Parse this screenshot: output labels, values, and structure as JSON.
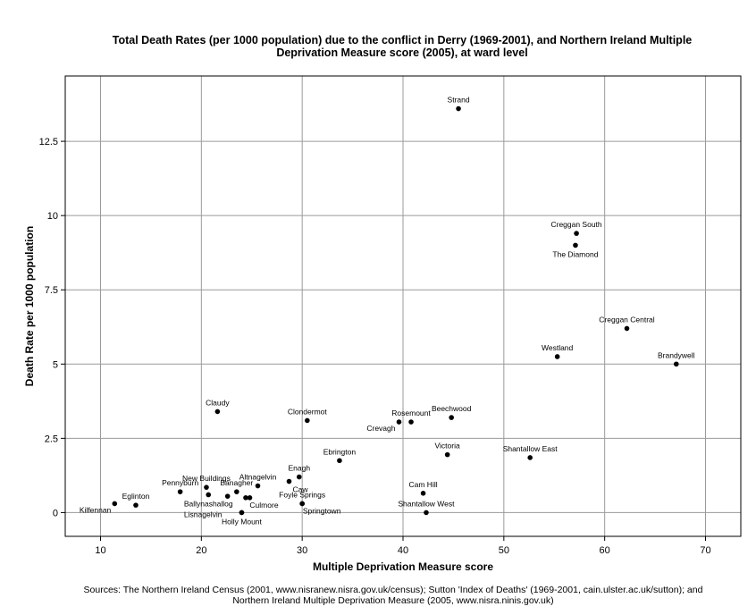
{
  "chart_data": {
    "type": "scatter",
    "title_lines": [
      "Total Death Rates (per 1000 population) due to the conflict in Derry (1969-2001), and Northern Ireland Multiple",
      "Deprivation Measure score (2005), at ward level"
    ],
    "xlabel": "Multiple Deprivation Measure score",
    "ylabel": "Death Rate per 1000 population",
    "xlim": [
      6.5,
      73.5
    ],
    "ylim": [
      -0.8,
      14.7
    ],
    "xticks": [
      10,
      20,
      30,
      40,
      50,
      60,
      70
    ],
    "yticks": [
      0,
      2.5,
      5,
      7.5,
      10,
      12.5
    ],
    "ytick_labels": [
      "0",
      "2.5",
      "5",
      "7.5",
      "10",
      "12.5"
    ],
    "grid": true,
    "points": [
      {
        "label": "Strand",
        "x": 45.5,
        "y": 13.6,
        "lpos": "top"
      },
      {
        "label": "Creggan South",
        "x": 57.2,
        "y": 9.4,
        "lpos": "top"
      },
      {
        "label": "The Diamond",
        "x": 57.1,
        "y": 9.0,
        "lpos": "bottom"
      },
      {
        "label": "Creggan Central",
        "x": 62.2,
        "y": 6.2,
        "lpos": "top"
      },
      {
        "label": "Westland",
        "x": 55.3,
        "y": 5.25,
        "lpos": "top"
      },
      {
        "label": "Brandywell",
        "x": 67.1,
        "y": 5.0,
        "lpos": "top"
      },
      {
        "label": "Claudy",
        "x": 21.6,
        "y": 3.4,
        "lpos": "top"
      },
      {
        "label": "Clondermot",
        "x": 30.5,
        "y": 3.1,
        "lpos": "top"
      },
      {
        "label": "Rosemount",
        "x": 40.8,
        "y": 3.05,
        "lpos": "top"
      },
      {
        "label": "Crevagh",
        "x": 39.6,
        "y": 3.05,
        "lpos": "left-below"
      },
      {
        "label": "Beechwood",
        "x": 44.8,
        "y": 3.2,
        "lpos": "top"
      },
      {
        "label": "Victoria",
        "x": 44.4,
        "y": 1.95,
        "lpos": "top"
      },
      {
        "label": "Shantallow East",
        "x": 52.6,
        "y": 1.85,
        "lpos": "top"
      },
      {
        "label": "Ebrington",
        "x": 33.7,
        "y": 1.75,
        "lpos": "top"
      },
      {
        "label": "Enagh",
        "x": 29.7,
        "y": 1.2,
        "lpos": "top"
      },
      {
        "label": "Altnagelvin",
        "x": 25.6,
        "y": 0.9,
        "lpos": "top"
      },
      {
        "label": "Caw",
        "x": 28.7,
        "y": 1.05,
        "lpos": "right-below"
      },
      {
        "label": "New Buildings",
        "x": 20.5,
        "y": 0.85,
        "lpos": "top"
      },
      {
        "label": "Banagher",
        "x": 23.5,
        "y": 0.7,
        "lpos": "top"
      },
      {
        "label": "Pennyburn",
        "x": 17.9,
        "y": 0.7,
        "lpos": "top"
      },
      {
        "label": "Ballynashallog",
        "x": 20.7,
        "y": 0.6,
        "lpos": "bottom"
      },
      {
        "label": "",
        "x": 22.6,
        "y": 0.55,
        "lpos": "none"
      },
      {
        "label": "",
        "x": 24.4,
        "y": 0.5,
        "lpos": "none"
      },
      {
        "label": "Culmore",
        "x": 24.8,
        "y": 0.5,
        "lpos": "bottom-right"
      },
      {
        "label": "Foyle Springs",
        "x": 30.0,
        "y": 0.3,
        "lpos": "top"
      },
      {
        "label": "Eglinton",
        "x": 13.5,
        "y": 0.25,
        "lpos": "top"
      },
      {
        "label": "Kilfennan",
        "x": 11.4,
        "y": 0.3,
        "lpos": "left-below"
      },
      {
        "label": "Cam Hill",
        "x": 42.0,
        "y": 0.65,
        "lpos": "top"
      },
      {
        "label": "Shantallow West",
        "x": 42.3,
        "y": 0.0,
        "lpos": "top"
      },
      {
        "label": "Springtown",
        "x": 30.0,
        "y": 0.3,
        "lpos": "bottom-below"
      },
      {
        "label": "Lisnagelvin",
        "x": 24.0,
        "y": 0.0,
        "lpos": "left"
      },
      {
        "label": "Holly Mount",
        "x": 24.0,
        "y": 0.0,
        "lpos": "bottom"
      }
    ]
  },
  "sources": [
    "Sources: The Northern Ireland Census (2001, www.nisranew.nisra.gov.uk/census); Sutton 'Index of Deaths' (1969-2001, cain.ulster.ac.uk/sutton); and",
    "Northern Ireland Multiple Deprivation Measure (2005, www.nisra.ninis.gov.uk)"
  ]
}
